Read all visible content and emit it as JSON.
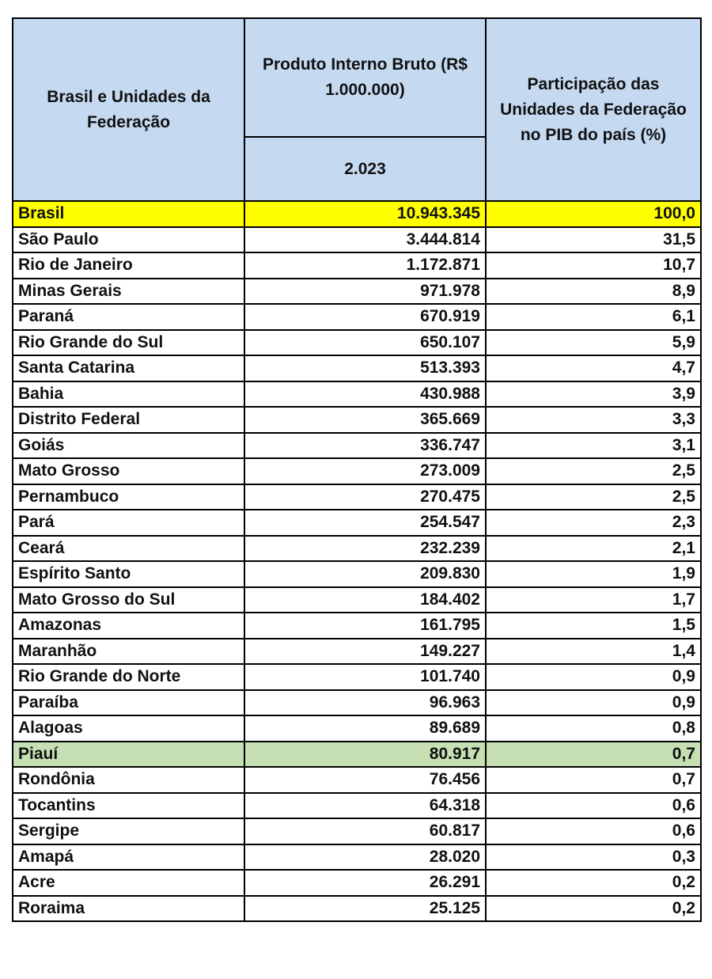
{
  "table": {
    "header": {
      "col1": "Brasil e Unidades da Federação",
      "col2": "Produto Interno Bruto (R$ 1.000.000)",
      "col2_sub": "2.023",
      "col3": "Participação das Unidades da Federação no PIB do país (%)"
    },
    "header_color": "#c5d9f1",
    "rows": [
      {
        "cells": [
          "Brasil",
          "10.943.345",
          "100,0"
        ],
        "color": "#ffff00"
      },
      {
        "cells": [
          "São Paulo",
          "3.444.814",
          "31,5"
        ]
      },
      {
        "cells": [
          "Rio de Janeiro",
          "1.172.871",
          "10,7"
        ]
      },
      {
        "cells": [
          "Minas Gerais",
          "971.978",
          "8,9"
        ]
      },
      {
        "cells": [
          "Paraná",
          "670.919",
          "6,1"
        ]
      },
      {
        "cells": [
          "Rio Grande do Sul",
          "650.107",
          "5,9"
        ]
      },
      {
        "cells": [
          "Santa Catarina",
          "513.393",
          "4,7"
        ]
      },
      {
        "cells": [
          "Bahia",
          "430.988",
          "3,9"
        ]
      },
      {
        "cells": [
          "Distrito Federal",
          "365.669",
          "3,3"
        ]
      },
      {
        "cells": [
          "Goiás",
          "336.747",
          "3,1"
        ]
      },
      {
        "cells": [
          "Mato Grosso",
          "273.009",
          "2,5"
        ]
      },
      {
        "cells": [
          "Pernambuco",
          "270.475",
          "2,5"
        ]
      },
      {
        "cells": [
          "Pará",
          "254.547",
          "2,3"
        ]
      },
      {
        "cells": [
          "Ceará",
          "232.239",
          "2,1"
        ]
      },
      {
        "cells": [
          "Espírito Santo",
          "209.830",
          "1,9"
        ]
      },
      {
        "cells": [
          "Mato Grosso do Sul",
          "184.402",
          "1,7"
        ]
      },
      {
        "cells": [
          "Amazonas",
          "161.795",
          "1,5"
        ]
      },
      {
        "cells": [
          "Maranhão",
          "149.227",
          "1,4"
        ]
      },
      {
        "cells": [
          "Rio Grande do Norte",
          "101.740",
          "0,9"
        ]
      },
      {
        "cells": [
          "Paraíba",
          "96.963",
          "0,9"
        ]
      },
      {
        "cells": [
          "Alagoas",
          "89.689",
          "0,8"
        ]
      },
      {
        "cells": [
          "Piauí",
          "80.917",
          "0,7"
        ],
        "color": "#c6e0b4"
      },
      {
        "cells": [
          "Rondônia",
          "76.456",
          "0,7"
        ]
      },
      {
        "cells": [
          "Tocantins",
          "64.318",
          "0,6"
        ]
      },
      {
        "cells": [
          "Sergipe",
          "60.817",
          "0,6"
        ]
      },
      {
        "cells": [
          "Amapá",
          "28.020",
          "0,3"
        ]
      },
      {
        "cells": [
          "Acre",
          "26.291",
          "0,2"
        ]
      },
      {
        "cells": [
          "Roraima",
          "25.125",
          "0,2"
        ]
      }
    ]
  }
}
